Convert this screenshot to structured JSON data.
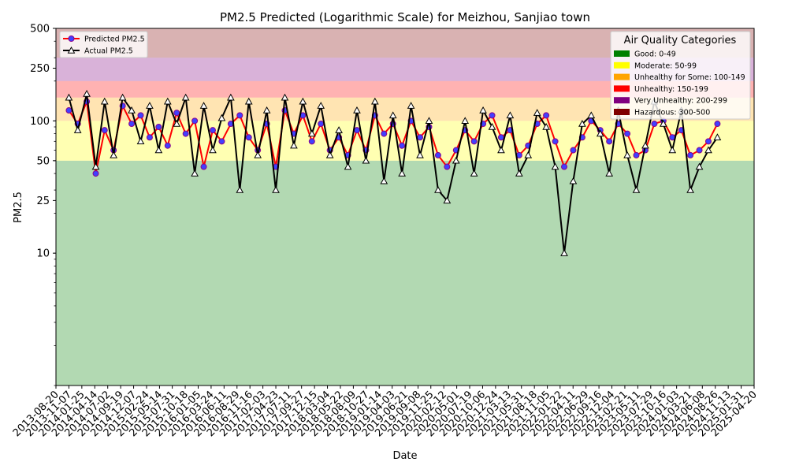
{
  "chart_data": {
    "type": "line",
    "title": "PM2.5 Predicted (Logarithmic Scale) for Meizhou, Sanjiao town",
    "xlabel": "Date",
    "ylabel": "PM2.5",
    "y_scale": "log",
    "ylim": [
      1,
      500
    ],
    "xlim": [
      "2013-08-20",
      "2025-04-20"
    ],
    "y_ticks": [
      10,
      25,
      50,
      100,
      250,
      500
    ],
    "x_ticks": [
      "2013-08-20",
      "2013-11-07",
      "2014-01-25",
      "2014-04-14",
      "2014-07-02",
      "2014-09-19",
      "2014-12-07",
      "2015-02-24",
      "2015-05-14",
      "2015-07-31",
      "2015-10-18",
      "2016-01-05",
      "2016-03-24",
      "2016-06-11",
      "2016-08-29",
      "2016-11-16",
      "2017-02-03",
      "2017-04-23",
      "2017-07-11",
      "2017-09-27",
      "2017-12-15",
      "2018-03-04",
      "2018-05-22",
      "2018-08-09",
      "2018-10-27",
      "2019-01-14",
      "2019-04-03",
      "2019-06-21",
      "2019-09-08",
      "2019-11-25",
      "2020-02-12",
      "2020-05-01",
      "2020-07-19",
      "2020-10-06",
      "2020-12-24",
      "2021-03-13",
      "2021-05-31",
      "2021-08-18",
      "2021-11-05",
      "2022-01-22",
      "2022-04-11",
      "2022-06-29",
      "2022-09-16",
      "2022-12-04",
      "2023-02-21",
      "2023-05-11",
      "2023-07-29",
      "2023-10-16",
      "2024-01-03",
      "2024-03-21",
      "2024-06-08",
      "2024-08-26",
      "2024-11-13",
      "2025-01-31",
      "2025-04-20"
    ],
    "grid": false,
    "aqi_bands": [
      {
        "label": "Good: 0-49",
        "min": 0,
        "max": 49,
        "color": "#008000"
      },
      {
        "label": "Moderate: 50-99",
        "min": 50,
        "max": 99,
        "color": "#ffff00"
      },
      {
        "label": "Unhealthy for Some: 100-149",
        "min": 100,
        "max": 149,
        "color": "#ffa500"
      },
      {
        "label": "Unhealthy: 150-199",
        "min": 150,
        "max": 199,
        "color": "#ff0000"
      },
      {
        "label": "Very Unhealthy: 200-299",
        "min": 200,
        "max": 299,
        "color": "#800080"
      },
      {
        "label": "Hazardous: 300-500",
        "min": 300,
        "max": 500,
        "color": "#800000"
      }
    ],
    "aqi_legend_title": "Air Quality Categories",
    "aqi_legend_placement": "top-right",
    "series_legend_placement": "top-left",
    "series": [
      {
        "name": "Predicted PM2.5",
        "color": "#ff0000",
        "marker_color": "#8b008b",
        "x": [
          "2013-11-07",
          "2013-12-31",
          "2014-02-24",
          "2014-04-20",
          "2014-06-13",
          "2014-08-07",
          "2014-10-01",
          "2014-11-25",
          "2015-01-19",
          "2015-03-15",
          "2015-05-09",
          "2015-07-03",
          "2015-08-27",
          "2015-10-21",
          "2015-12-15",
          "2016-02-08",
          "2016-04-03",
          "2016-05-28",
          "2016-07-22",
          "2016-09-15",
          "2016-11-09",
          "2017-01-03",
          "2017-02-27",
          "2017-04-23",
          "2017-06-17",
          "2017-08-11",
          "2017-10-05",
          "2017-11-29",
          "2018-01-23",
          "2018-03-19",
          "2018-05-13",
          "2018-07-07",
          "2018-08-31",
          "2018-10-25",
          "2018-12-19",
          "2019-02-12",
          "2019-04-08",
          "2019-06-02",
          "2019-07-27",
          "2019-09-20",
          "2019-11-14",
          "2020-01-08",
          "2020-03-03",
          "2020-04-27",
          "2020-06-21",
          "2020-08-15",
          "2020-10-09",
          "2020-12-03",
          "2021-01-27",
          "2021-03-23",
          "2021-05-17",
          "2021-07-11",
          "2021-09-04",
          "2021-10-29",
          "2021-12-23",
          "2022-02-16",
          "2022-04-12",
          "2022-06-06",
          "2022-07-31",
          "2022-09-24",
          "2022-11-18",
          "2023-01-12",
          "2023-03-08",
          "2023-05-02",
          "2023-06-26",
          "2023-08-20",
          "2023-10-14",
          "2023-12-08",
          "2024-02-01",
          "2024-03-27",
          "2024-05-21",
          "2024-07-15",
          "2024-09-08"
        ],
        "values": [
          120,
          95,
          140,
          40,
          85,
          60,
          130,
          95,
          110,
          75,
          90,
          65,
          115,
          80,
          100,
          45,
          85,
          70,
          95,
          110,
          75,
          60,
          95,
          45,
          120,
          80,
          110,
          70,
          95,
          60,
          75,
          55,
          85,
          60,
          110,
          80,
          95,
          65,
          100,
          75,
          90,
          55,
          45,
          60,
          85,
          70,
          95,
          110,
          75,
          85,
          55,
          65,
          95,
          110,
          70,
          45,
          60,
          75,
          100,
          85,
          70,
          95,
          80,
          55,
          60,
          95,
          100,
          75,
          85,
          55,
          60,
          70,
          95
        ]
      },
      {
        "name": "Actual PM2.5",
        "color": "#000000",
        "marker_color": "#000000",
        "x": [
          "2013-11-07",
          "2013-12-31",
          "2014-02-24",
          "2014-04-20",
          "2014-06-13",
          "2014-08-07",
          "2014-10-01",
          "2014-11-25",
          "2015-01-19",
          "2015-03-15",
          "2015-05-09",
          "2015-07-03",
          "2015-08-27",
          "2015-10-21",
          "2015-12-15",
          "2016-02-08",
          "2016-04-03",
          "2016-05-28",
          "2016-07-22",
          "2016-09-15",
          "2016-11-09",
          "2017-01-03",
          "2017-02-27",
          "2017-04-23",
          "2017-06-17",
          "2017-08-11",
          "2017-10-05",
          "2017-11-29",
          "2018-01-23",
          "2018-03-19",
          "2018-05-13",
          "2018-07-07",
          "2018-08-31",
          "2018-10-25",
          "2018-12-19",
          "2019-02-12",
          "2019-04-08",
          "2019-06-02",
          "2019-07-27",
          "2019-09-20",
          "2019-11-14",
          "2020-01-08",
          "2020-03-03",
          "2020-04-27",
          "2020-06-21",
          "2020-08-15",
          "2020-10-09",
          "2020-12-03",
          "2021-01-27",
          "2021-03-23",
          "2021-05-17",
          "2021-07-11",
          "2021-09-04",
          "2021-10-29",
          "2021-12-23",
          "2022-02-16",
          "2022-04-12",
          "2022-06-06",
          "2022-07-31",
          "2022-09-24",
          "2022-11-18",
          "2023-01-12",
          "2023-03-08",
          "2023-05-02",
          "2023-06-26",
          "2023-08-20",
          "2023-10-14",
          "2023-12-08",
          "2024-02-01",
          "2024-03-27",
          "2024-05-21",
          "2024-07-15",
          "2024-09-08"
        ],
        "values": [
          150,
          85,
          160,
          45,
          140,
          55,
          150,
          120,
          70,
          130,
          60,
          140,
          95,
          150,
          40,
          130,
          60,
          105,
          150,
          30,
          140,
          55,
          120,
          30,
          150,
          65,
          140,
          80,
          130,
          55,
          85,
          45,
          120,
          50,
          140,
          35,
          110,
          40,
          130,
          55,
          100,
          30,
          25,
          50,
          100,
          40,
          120,
          90,
          60,
          110,
          40,
          55,
          115,
          90,
          45,
          10,
          35,
          95,
          110,
          80,
          40,
          120,
          55,
          30,
          65,
          140,
          95,
          60,
          120,
          30,
          45,
          60,
          75
        ]
      }
    ]
  }
}
